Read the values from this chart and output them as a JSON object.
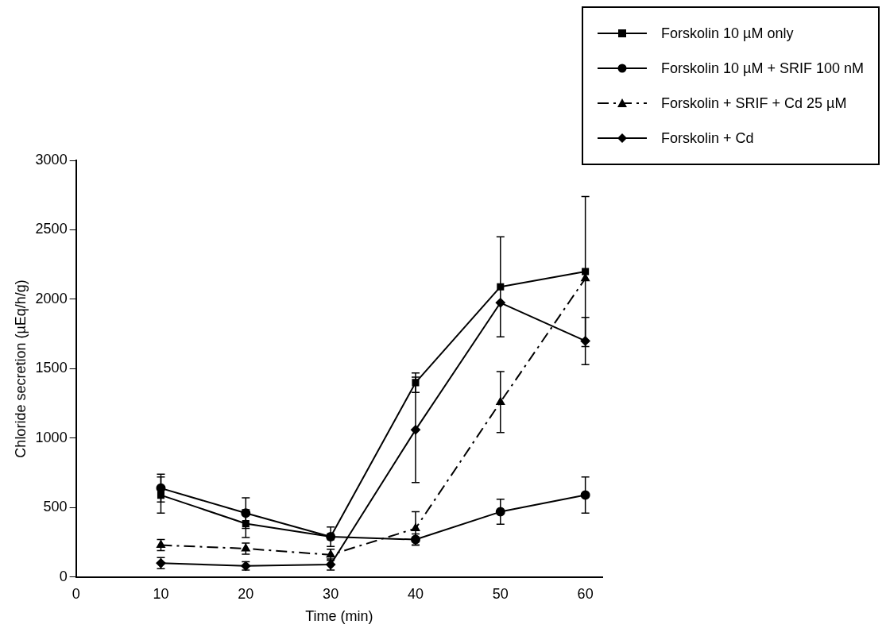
{
  "chart_data": {
    "type": "line",
    "xlabel": "Time (min)",
    "ylabel": "Chloride secretion (µEq/h/g)",
    "x": [
      10,
      20,
      30,
      40,
      50,
      60
    ],
    "series": [
      {
        "name": "Forskolin 10 µM only",
        "color": "#000000",
        "marker": "square",
        "line_style": "solid",
        "values": [
          590,
          385,
          290,
          1400,
          2090,
          2200
        ],
        "errors": [
          130,
          100,
          null,
          70,
          360,
          540
        ]
      },
      {
        "name": "Forskolin 10 µM + SRIF 100 nM",
        "color": "#000000",
        "marker": "circle",
        "line_style": "solid",
        "values": [
          640,
          460,
          290,
          270,
          470,
          590
        ],
        "errors": [
          100,
          110,
          70,
          40,
          90,
          130
        ]
      },
      {
        "name": "Forskolin + SRIF + Cd 25 µM",
        "color": "#000000",
        "marker": "triangle",
        "line_style": "dashed",
        "values": [
          230,
          205,
          160,
          350,
          1260,
          2150
        ],
        "errors": [
          40,
          40,
          40,
          120,
          220,
          null
        ]
      },
      {
        "name": "Forskolin + Cd",
        "color": "#000000",
        "marker": "diamond",
        "line_style": "solid",
        "values": [
          100,
          80,
          90,
          1060,
          1975,
          1700
        ],
        "errors": [
          40,
          30,
          40,
          380,
          null,
          170
        ]
      }
    ],
    "xlim": [
      0,
      62
    ],
    "xticks": [
      0,
      10,
      20,
      30,
      40,
      50,
      60
    ],
    "ylim": [
      0,
      3000
    ],
    "yticks": [
      0,
      500,
      1000,
      1500,
      2000,
      2500,
      3000
    ],
    "grid": false,
    "legend": "top right"
  }
}
